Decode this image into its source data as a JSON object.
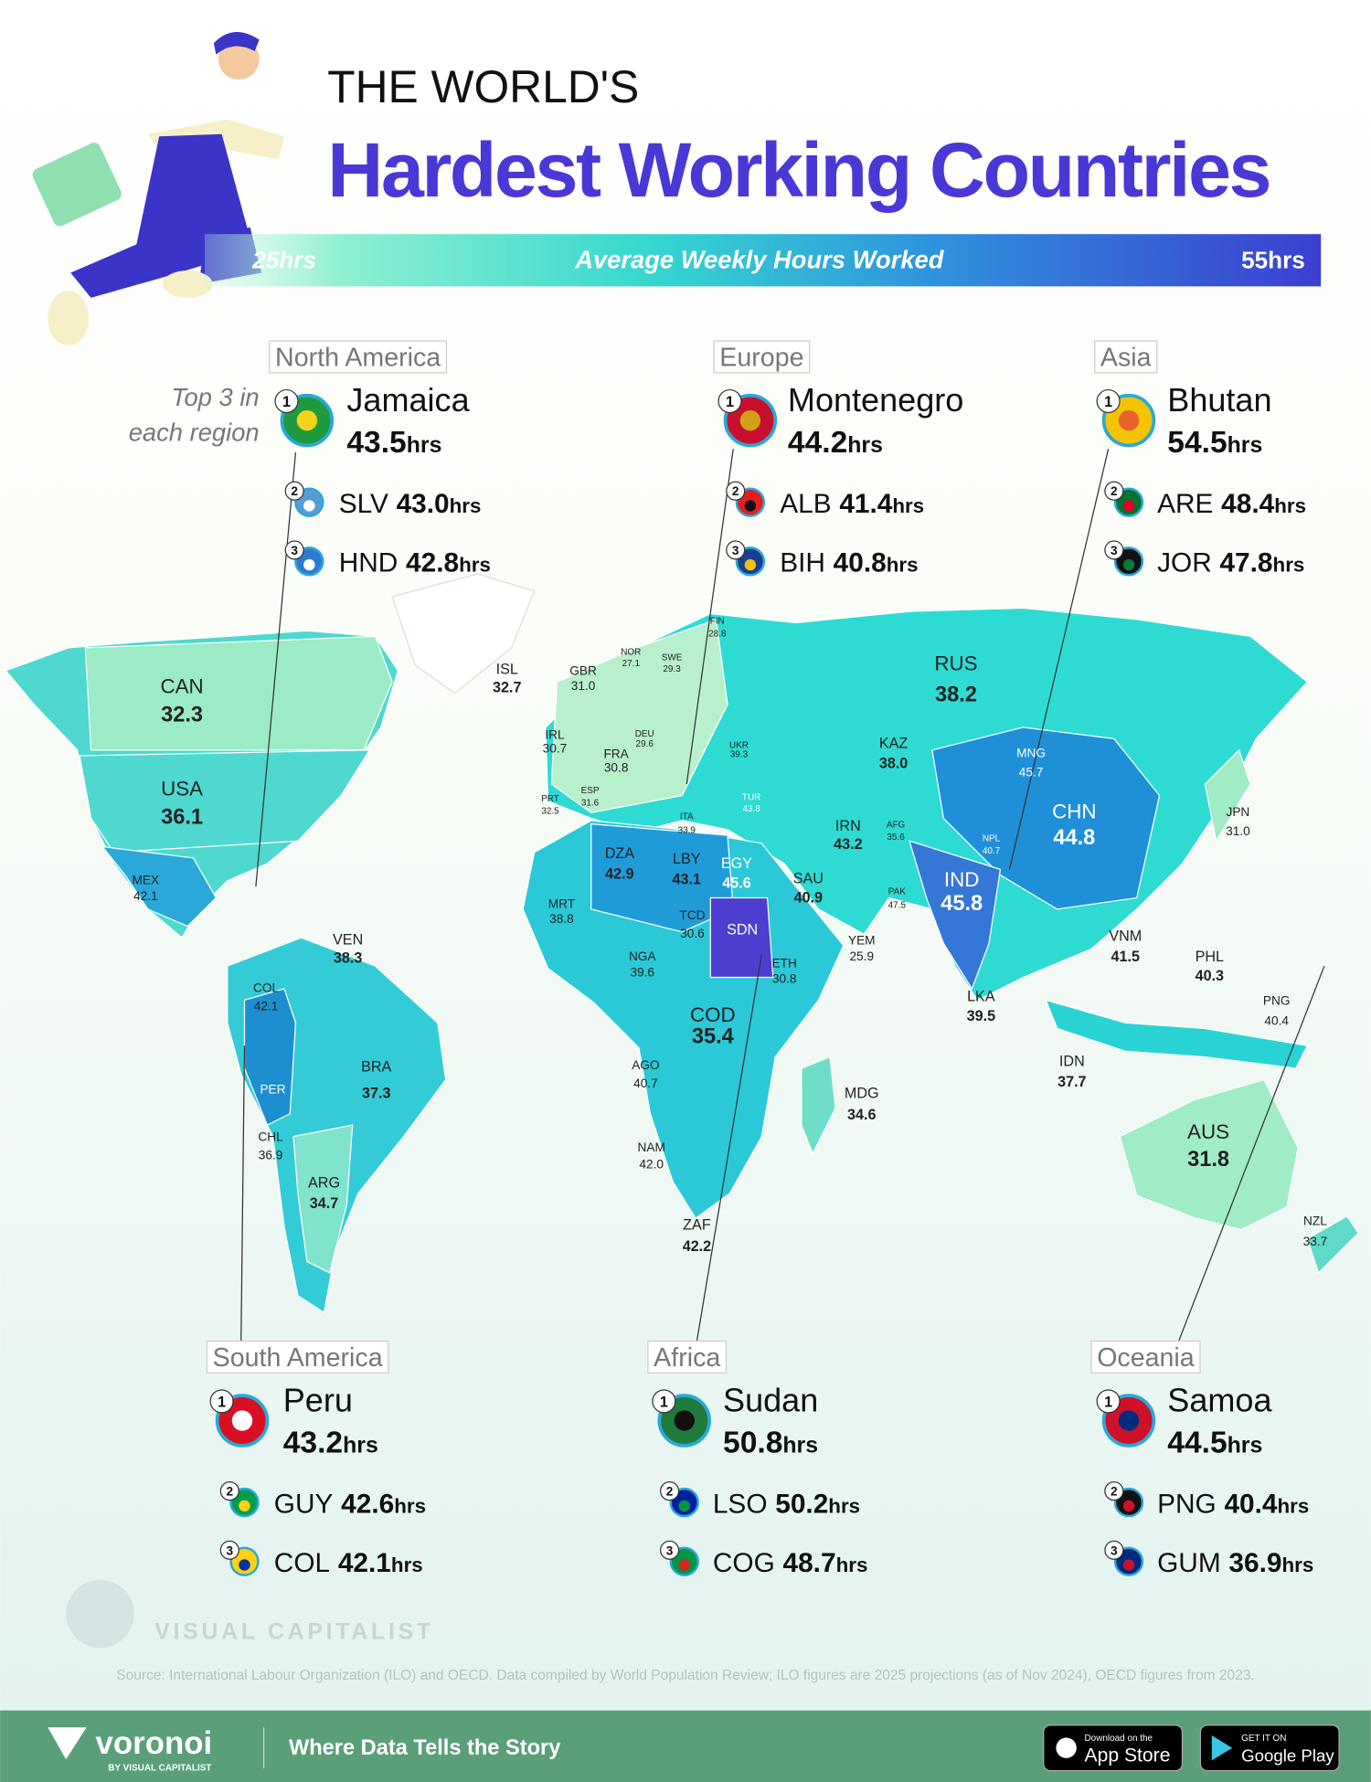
{
  "header": {
    "title_small": "THE WORLD'S",
    "title": "Hardest Working Countries"
  },
  "legend": {
    "min_label": "25hrs",
    "label": "Average Weekly Hours Worked",
    "max_label": "55hrs"
  },
  "note": [
    "Top 3 in",
    "each region"
  ],
  "unit": "hrs",
  "regions": [
    {
      "name": "North America",
      "entries": [
        {
          "rank": 1,
          "country": "Jamaica",
          "value": "43.5"
        },
        {
          "rank": 2,
          "country": "SLV",
          "value": "43.0"
        },
        {
          "rank": 3,
          "country": "HND",
          "value": "42.8"
        }
      ]
    },
    {
      "name": "Europe",
      "entries": [
        {
          "rank": 1,
          "country": "Montenegro",
          "value": "44.2"
        },
        {
          "rank": 2,
          "country": "ALB",
          "value": "41.4"
        },
        {
          "rank": 3,
          "country": "BIH",
          "value": "40.8"
        }
      ]
    },
    {
      "name": "Asia",
      "entries": [
        {
          "rank": 1,
          "country": "Bhutan",
          "value": "54.5"
        },
        {
          "rank": 2,
          "country": "ARE",
          "value": "48.4"
        },
        {
          "rank": 3,
          "country": "JOR",
          "value": "47.8"
        }
      ]
    },
    {
      "name": "South America",
      "entries": [
        {
          "rank": 1,
          "country": "Peru",
          "value": "43.2"
        },
        {
          "rank": 2,
          "country": "GUY",
          "value": "42.6"
        },
        {
          "rank": 3,
          "country": "COL",
          "value": "42.1"
        }
      ]
    },
    {
      "name": "Africa",
      "entries": [
        {
          "rank": 1,
          "country": "Sudan",
          "value": "50.8"
        },
        {
          "rank": 2,
          "country": "LSO",
          "value": "50.2"
        },
        {
          "rank": 3,
          "country": "COG",
          "value": "48.7"
        }
      ]
    },
    {
      "name": "Oceania",
      "entries": [
        {
          "rank": 1,
          "country": "Samoa",
          "value": "44.5"
        },
        {
          "rank": 2,
          "country": "PNG",
          "value": "40.4"
        },
        {
          "rank": 3,
          "country": "GUM",
          "value": "36.9"
        }
      ]
    }
  ],
  "map_labels": [
    {
      "code": "CAN",
      "value": "32.3"
    },
    {
      "code": "USA",
      "value": "36.1"
    },
    {
      "code": "MEX",
      "value": "42.1"
    },
    {
      "code": "VEN",
      "value": "38.3"
    },
    {
      "code": "COL",
      "value": "42.1"
    },
    {
      "code": "PER"
    },
    {
      "code": "BRA",
      "value": "37.3"
    },
    {
      "code": "CHL",
      "value": "36.9"
    },
    {
      "code": "ARG",
      "value": "34.7"
    },
    {
      "code": "ISL",
      "value": "32.7"
    },
    {
      "code": "GBR",
      "value": "31.0"
    },
    {
      "code": "IRL",
      "value": "30.7"
    },
    {
      "code": "NOR",
      "value": "27.1"
    },
    {
      "code": "SWE",
      "value": "29.3"
    },
    {
      "code": "FIN",
      "value": "28.8"
    },
    {
      "code": "DEU",
      "value": "29.6"
    },
    {
      "code": "FRA",
      "value": "30.8"
    },
    {
      "code": "UKR",
      "value": "39.3"
    },
    {
      "code": "ESP",
      "value": "31.6"
    },
    {
      "code": "PRT",
      "value": "32.5"
    },
    {
      "code": "ITA",
      "value": "33.9"
    },
    {
      "code": "TUR",
      "value": "43.8"
    },
    {
      "code": "RUS",
      "value": "38.2"
    },
    {
      "code": "KAZ",
      "value": "38.0"
    },
    {
      "code": "MNG",
      "value": "45.7"
    },
    {
      "code": "CHN",
      "value": "44.8"
    },
    {
      "code": "JPN",
      "value": "31.0"
    },
    {
      "code": "IRN",
      "value": "43.2"
    },
    {
      "code": "AFG",
      "value": "35.6"
    },
    {
      "code": "NPL",
      "value": "40.7"
    },
    {
      "code": "PAK",
      "value": "47.5"
    },
    {
      "code": "IND",
      "value": "45.8"
    },
    {
      "code": "SAU",
      "value": "40.9"
    },
    {
      "code": "EGY",
      "value": "45.6"
    },
    {
      "code": "LBY",
      "value": "43.1"
    },
    {
      "code": "DZA",
      "value": "42.9"
    },
    {
      "code": "MRT",
      "value": "38.8"
    },
    {
      "code": "TCD",
      "value": "30.6"
    },
    {
      "code": "SDN"
    },
    {
      "code": "YEM",
      "value": "25.9"
    },
    {
      "code": "NGA",
      "value": "39.6"
    },
    {
      "code": "ETH",
      "value": "30.8"
    },
    {
      "code": "COD",
      "value": "35.4"
    },
    {
      "code": "AGO",
      "value": "40.7"
    },
    {
      "code": "NAM",
      "value": "42.0"
    },
    {
      "code": "ZAF",
      "value": "42.2"
    },
    {
      "code": "MDG",
      "value": "34.6"
    },
    {
      "code": "LKA",
      "value": "39.5"
    },
    {
      "code": "VNM",
      "value": "41.5"
    },
    {
      "code": "PHL",
      "value": "40.3"
    },
    {
      "code": "PNG",
      "value": "40.4"
    },
    {
      "code": "IDN",
      "value": "37.7"
    },
    {
      "code": "AUS",
      "value": "31.8"
    },
    {
      "code": "NZL",
      "value": "33.7"
    }
  ],
  "watermark": "VISUAL CAPITALIST",
  "source": "Source: International Labour Organization (ILO) and OECD. Data compiled by World Population Review; ILO figures are 2025 projections (as of Nov 2024), OECD figures from 2023.",
  "footer": {
    "brand": "voronoi",
    "brand_sub": "BY VISUAL CAPITALIST",
    "tagline": "Where Data Tells the Story",
    "app_store_small": "Download on the",
    "app_store": "App Store",
    "google_small": "GET IT ON",
    "google": "Google Play"
  }
}
